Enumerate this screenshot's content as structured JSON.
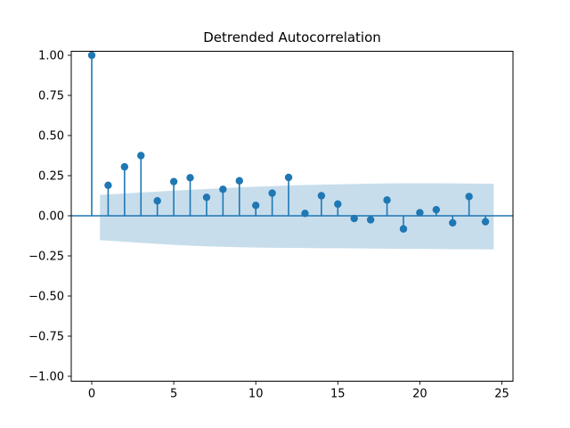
{
  "figure": {
    "title": "Detrended Autocorrelation",
    "background_color": "#ffffff",
    "accent_color": "#1f77b4",
    "band_color": "#1f77b4",
    "band_opacity": 0.25,
    "spine_color": "#000000"
  },
  "chart_data": {
    "type": "scatter",
    "style": "stem-acf",
    "title": "Detrended Autocorrelation",
    "xlabel": "",
    "ylabel": "",
    "x": [
      0,
      1,
      2,
      3,
      4,
      5,
      6,
      7,
      8,
      9,
      10,
      11,
      12,
      13,
      14,
      15,
      16,
      17,
      18,
      19,
      20,
      21,
      22,
      23,
      24
    ],
    "y": [
      1.0,
      0.19,
      0.305,
      0.375,
      0.093,
      0.213,
      0.237,
      0.115,
      0.165,
      0.218,
      0.065,
      0.141,
      0.239,
      0.015,
      0.125,
      0.073,
      -0.017,
      -0.025,
      0.098,
      -0.082,
      0.019,
      0.038,
      -0.044,
      0.12,
      -0.037
    ],
    "confidence_band": {
      "x": [
        0.5,
        1,
        2,
        3,
        4,
        5,
        6,
        7,
        8,
        9,
        10,
        11,
        12,
        13,
        14,
        15,
        16,
        17,
        18,
        19,
        20,
        21,
        22,
        23,
        24,
        24.5
      ],
      "upper": [
        0.13,
        0.133,
        0.139,
        0.145,
        0.151,
        0.157,
        0.162,
        0.167,
        0.172,
        0.177,
        0.181,
        0.185,
        0.189,
        0.192,
        0.194,
        0.196,
        0.198,
        0.2,
        0.202,
        0.203,
        0.203,
        0.203,
        0.202,
        0.201,
        0.2,
        0.2
      ],
      "lower": [
        -0.152,
        -0.155,
        -0.162,
        -0.169,
        -0.175,
        -0.181,
        -0.186,
        -0.19,
        -0.193,
        -0.196,
        -0.198,
        -0.199,
        -0.2,
        -0.201,
        -0.202,
        -0.202,
        -0.203,
        -0.204,
        -0.205,
        -0.206,
        -0.206,
        -0.207,
        -0.208,
        -0.208,
        -0.209,
        -0.21
      ]
    },
    "zero_line": true,
    "grid": false,
    "legend": null,
    "xlim": [
      -1.25,
      25.7
    ],
    "ylim": [
      -1.03,
      1.03
    ],
    "xticks": [
      0,
      5,
      10,
      15,
      20,
      25
    ],
    "xtick_labels": [
      "0",
      "5",
      "10",
      "15",
      "20",
      "25"
    ],
    "yticks": [
      1.0,
      0.75,
      0.5,
      0.25,
      0.0,
      -0.25,
      -0.5,
      -0.75,
      -1.0
    ],
    "ytick_labels": [
      "1.00",
      "0.75",
      "0.50",
      "0.25",
      "0.00",
      "−0.25",
      "−0.50",
      "−0.75",
      "−1.00"
    ]
  }
}
